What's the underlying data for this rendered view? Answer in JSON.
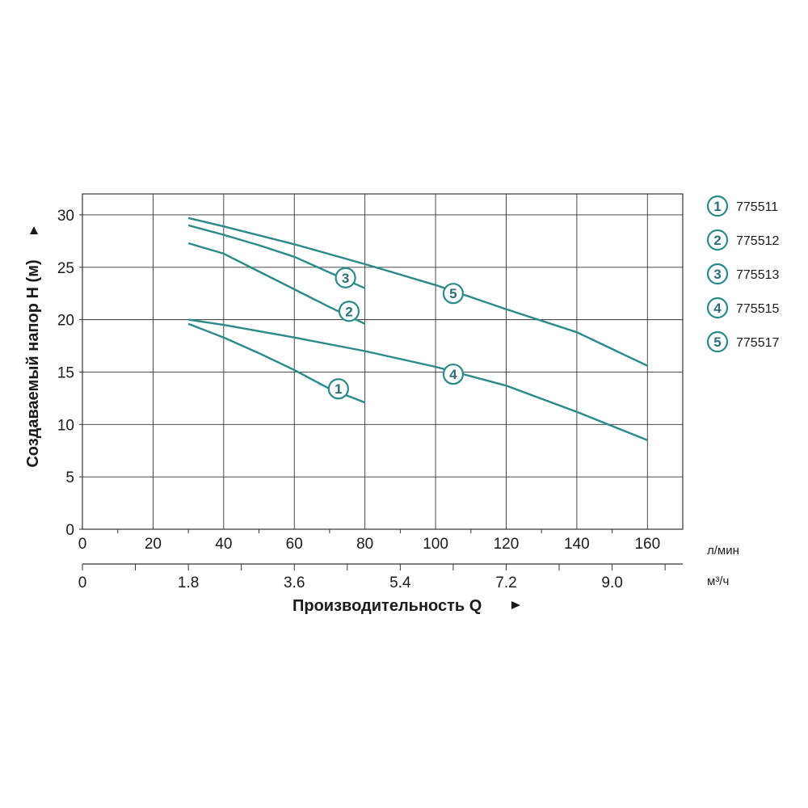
{
  "chart_data": {
    "type": "line",
    "ylabel": "Создаваемый напор H (м)",
    "xlabel": "Производительность Q",
    "x_unit_primary": "л/мин",
    "x_unit_secondary": "м³/ч",
    "xlim": [
      0,
      170
    ],
    "ylim": [
      0,
      32
    ],
    "x_ticks": [
      0,
      20,
      40,
      60,
      80,
      100,
      120,
      140,
      160
    ],
    "x_tick_labels": [
      "0",
      "20",
      "40",
      "60",
      "80",
      "100",
      "120",
      "140",
      "160"
    ],
    "x2_ticks": [
      0,
      30,
      60,
      90,
      120,
      150
    ],
    "x2_tick_labels": [
      "0",
      "1.8",
      "3.6",
      "5.4",
      "7.2",
      "9.0"
    ],
    "y_ticks": [
      0,
      5,
      10,
      15,
      20,
      25,
      30
    ],
    "y_tick_labels": [
      "0",
      "5",
      "10",
      "15",
      "20",
      "25",
      "30"
    ],
    "grid": true,
    "legend_position": "right",
    "line_color": "#2a8a8a",
    "series": [
      {
        "name": "775511",
        "marker": "1",
        "x": [
          30,
          40,
          50,
          60,
          70,
          80
        ],
        "y": [
          19.6,
          18.3,
          16.8,
          15.2,
          13.4,
          12.1
        ],
        "label_at": [
          72.5,
          13.4
        ]
      },
      {
        "name": "775512",
        "marker": "2",
        "x": [
          30,
          40,
          50,
          60,
          70,
          80
        ],
        "y": [
          27.3,
          26.3,
          24.6,
          22.9,
          21.2,
          19.6
        ],
        "label_at": [
          75.5,
          20.8
        ]
      },
      {
        "name": "775513",
        "marker": "3",
        "x": [
          30,
          40,
          50,
          60,
          70,
          80
        ],
        "y": [
          29.0,
          28.1,
          27.1,
          26.0,
          24.5,
          23.0
        ],
        "label_at": [
          74.5,
          24.0
        ]
      },
      {
        "name": "775515",
        "marker": "4",
        "x": [
          30,
          40,
          60,
          80,
          100,
          120,
          140,
          160
        ],
        "y": [
          20.0,
          19.5,
          18.3,
          17.0,
          15.5,
          13.7,
          11.2,
          8.5
        ],
        "label_at": [
          105,
          14.8
        ]
      },
      {
        "name": "775517",
        "marker": "5",
        "x": [
          30,
          40,
          60,
          80,
          100,
          120,
          140,
          160
        ],
        "y": [
          29.7,
          28.9,
          27.2,
          25.3,
          23.3,
          21.0,
          18.8,
          15.6
        ],
        "label_at": [
          105,
          22.5
        ]
      }
    ]
  }
}
